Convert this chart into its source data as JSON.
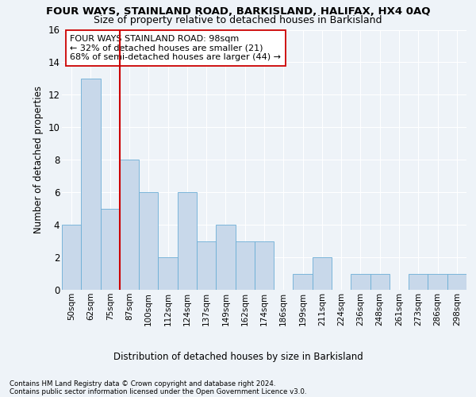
{
  "title": "FOUR WAYS, STAINLAND ROAD, BARKISLAND, HALIFAX, HX4 0AQ",
  "subtitle": "Size of property relative to detached houses in Barkisland",
  "xlabel_bottom": "Distribution of detached houses by size in Barkisland",
  "ylabel": "Number of detached properties",
  "bar_color": "#c8d8ea",
  "bar_edge_color": "#6baed6",
  "categories": [
    "50sqm",
    "62sqm",
    "75sqm",
    "87sqm",
    "100sqm",
    "112sqm",
    "124sqm",
    "137sqm",
    "149sqm",
    "162sqm",
    "174sqm",
    "186sqm",
    "199sqm",
    "211sqm",
    "224sqm",
    "236sqm",
    "248sqm",
    "261sqm",
    "273sqm",
    "286sqm",
    "298sqm"
  ],
  "values": [
    4,
    13,
    5,
    8,
    6,
    2,
    6,
    3,
    4,
    3,
    3,
    0,
    1,
    2,
    0,
    1,
    1,
    0,
    1,
    1,
    1
  ],
  "ylim": [
    0,
    16
  ],
  "yticks": [
    0,
    2,
    4,
    6,
    8,
    10,
    12,
    14,
    16
  ],
  "property_line_x": 2.5,
  "property_line_color": "#cc0000",
  "annotation_text": "FOUR WAYS STAINLAND ROAD: 98sqm\n← 32% of detached houses are smaller (21)\n68% of semi-detached houses are larger (44) →",
  "annotation_box_color": "#ffffff",
  "annotation_box_edge": "#cc0000",
  "footer_line1": "Contains HM Land Registry data © Crown copyright and database right 2024.",
  "footer_line2": "Contains public sector information licensed under the Open Government Licence v3.0.",
  "background_color": "#eef3f8",
  "plot_bg_color": "#eef3f8",
  "grid_color": "#ffffff",
  "title_fontsize": 9.5,
  "subtitle_fontsize": 9,
  "annot_fontsize": 8
}
